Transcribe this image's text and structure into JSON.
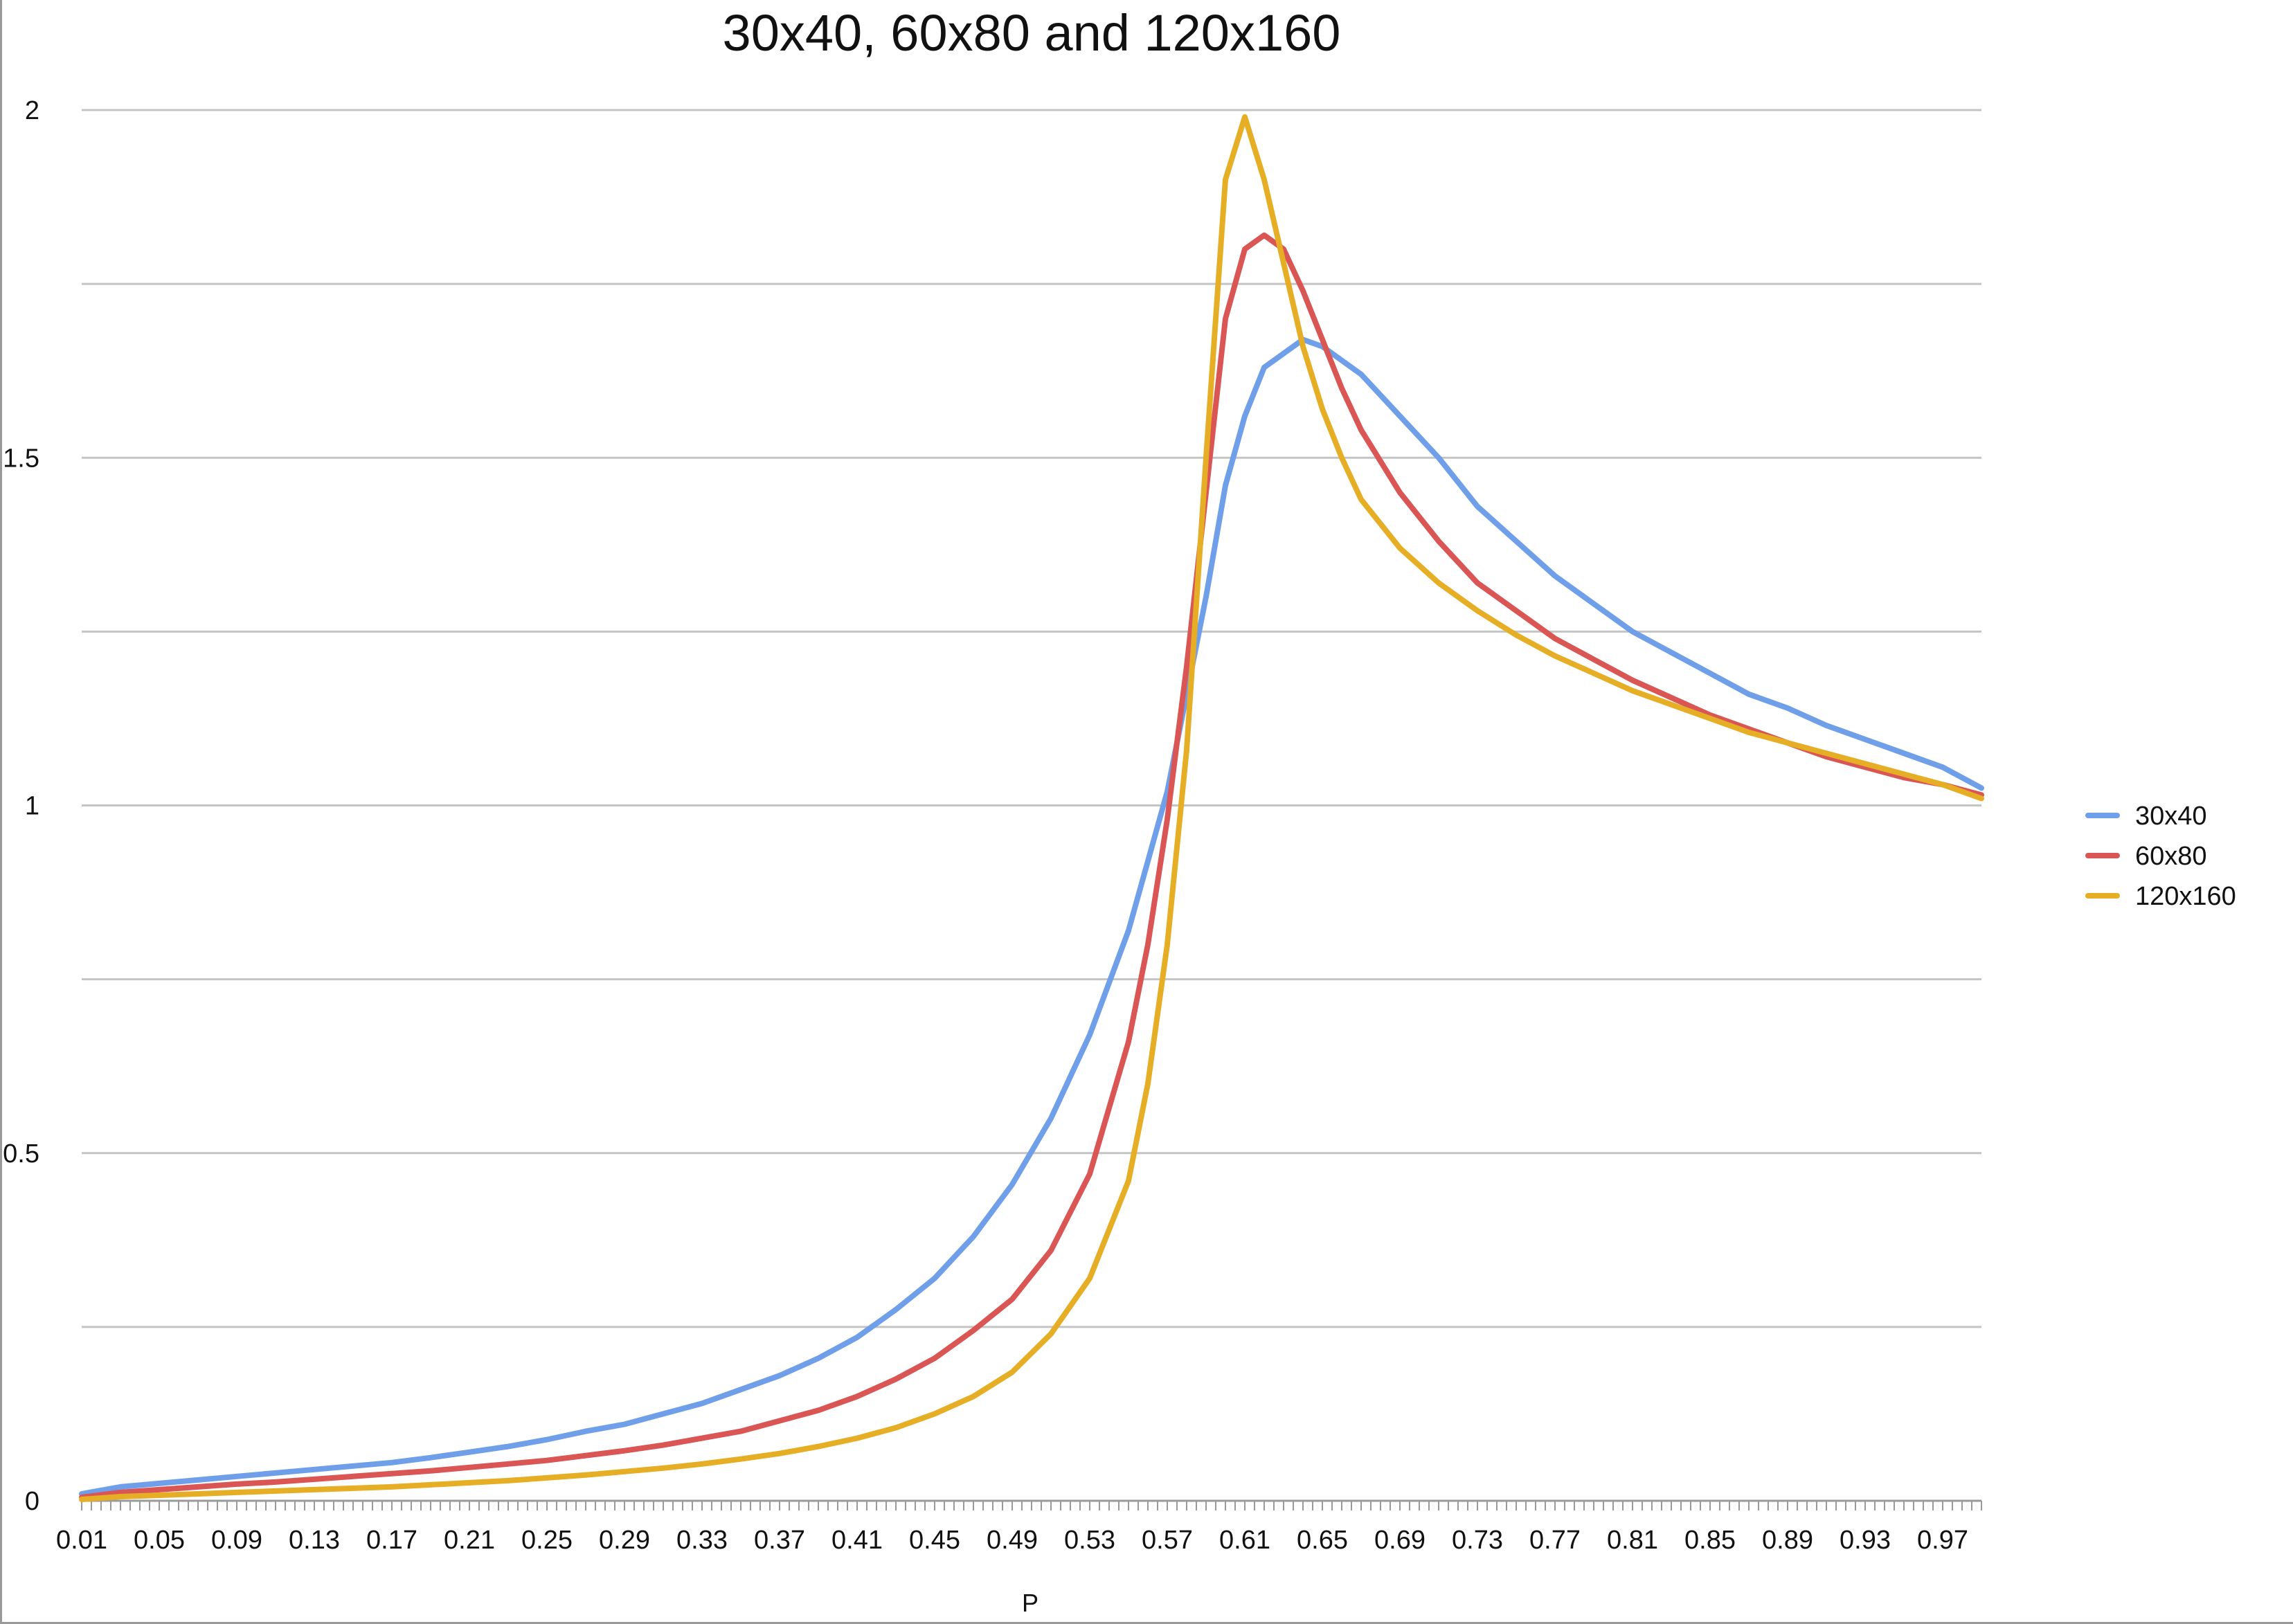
{
  "chart_data": {
    "type": "line",
    "title": "30x40, 60x80 and 120x160",
    "xlabel": "P",
    "ylabel": "",
    "xlim": [
      0.01,
      0.99
    ],
    "ylim": [
      0,
      2
    ],
    "grid": true,
    "legend_position": "right",
    "y_ticks": [
      "0",
      "0.5",
      "1",
      "1.5",
      "2"
    ],
    "x_ticks": [
      "0.01",
      "0.05",
      "0.09",
      "0.13",
      "0.17",
      "0.21",
      "0.25",
      "0.29",
      "0.33",
      "0.37",
      "0.41",
      "0.45",
      "0.49",
      "0.53",
      "0.57",
      "0.61",
      "0.65",
      "0.69",
      "0.73",
      "0.77",
      "0.81",
      "0.85",
      "0.89",
      "0.93",
      "0.97"
    ],
    "x": [
      0.01,
      0.03,
      0.05,
      0.07,
      0.09,
      0.11,
      0.13,
      0.15,
      0.17,
      0.19,
      0.21,
      0.23,
      0.25,
      0.27,
      0.29,
      0.31,
      0.33,
      0.35,
      0.37,
      0.39,
      0.41,
      0.43,
      0.45,
      0.47,
      0.49,
      0.51,
      0.53,
      0.55,
      0.56,
      0.57,
      0.58,
      0.59,
      0.6,
      0.61,
      0.62,
      0.63,
      0.64,
      0.65,
      0.66,
      0.67,
      0.69,
      0.71,
      0.73,
      0.75,
      0.77,
      0.79,
      0.81,
      0.83,
      0.85,
      0.87,
      0.89,
      0.91,
      0.93,
      0.95,
      0.97,
      0.99
    ],
    "series": [
      {
        "name": "30x40",
        "color": "#6f9fe8",
        "values": [
          0.01,
          0.02,
          0.025,
          0.03,
          0.035,
          0.04,
          0.045,
          0.05,
          0.055,
          0.062,
          0.07,
          0.078,
          0.088,
          0.1,
          0.11,
          0.125,
          0.14,
          0.16,
          0.18,
          0.205,
          0.235,
          0.275,
          0.32,
          0.38,
          0.455,
          0.55,
          0.67,
          0.82,
          0.92,
          1.02,
          1.16,
          1.3,
          1.46,
          1.56,
          1.63,
          1.65,
          1.67,
          1.66,
          1.64,
          1.62,
          1.56,
          1.5,
          1.43,
          1.38,
          1.33,
          1.29,
          1.25,
          1.22,
          1.19,
          1.16,
          1.14,
          1.115,
          1.095,
          1.075,
          1.055,
          1.025
        ]
      },
      {
        "name": "60x80",
        "color": "#d95654",
        "values": [
          0.005,
          0.012,
          0.016,
          0.02,
          0.024,
          0.027,
          0.031,
          0.035,
          0.039,
          0.043,
          0.048,
          0.053,
          0.058,
          0.065,
          0.072,
          0.08,
          0.09,
          0.1,
          0.115,
          0.13,
          0.15,
          0.175,
          0.205,
          0.245,
          0.29,
          0.36,
          0.47,
          0.66,
          0.8,
          0.98,
          1.2,
          1.45,
          1.7,
          1.8,
          1.82,
          1.8,
          1.74,
          1.67,
          1.6,
          1.54,
          1.45,
          1.38,
          1.32,
          1.28,
          1.24,
          1.21,
          1.18,
          1.155,
          1.13,
          1.11,
          1.09,
          1.07,
          1.055,
          1.04,
          1.03,
          1.015
        ]
      },
      {
        "name": "120x160",
        "color": "#e6ae25",
        "values": [
          0.002,
          0.006,
          0.008,
          0.01,
          0.012,
          0.014,
          0.016,
          0.018,
          0.02,
          0.023,
          0.026,
          0.029,
          0.033,
          0.037,
          0.042,
          0.047,
          0.053,
          0.06,
          0.068,
          0.078,
          0.09,
          0.105,
          0.125,
          0.15,
          0.185,
          0.24,
          0.32,
          0.46,
          0.6,
          0.8,
          1.08,
          1.5,
          1.9,
          1.99,
          1.9,
          1.78,
          1.66,
          1.57,
          1.5,
          1.44,
          1.37,
          1.32,
          1.28,
          1.245,
          1.215,
          1.19,
          1.165,
          1.145,
          1.125,
          1.105,
          1.09,
          1.075,
          1.06,
          1.045,
          1.03,
          1.01
        ]
      }
    ]
  }
}
